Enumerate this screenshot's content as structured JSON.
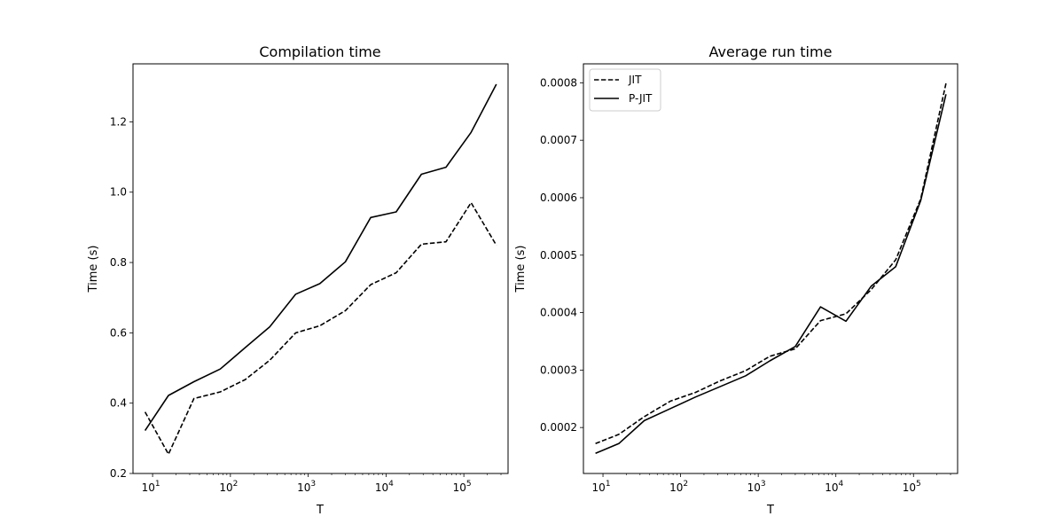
{
  "chart_data": [
    {
      "type": "line",
      "title": "Compilation time",
      "xlabel": "T",
      "ylabel": "Time (s)",
      "xscale": "log",
      "xlim": [
        5.6,
        370000
      ],
      "ylim": [
        0.2,
        1.365
      ],
      "xticks": [
        {
          "value": 10,
          "base": "10",
          "exp": "1"
        },
        {
          "value": 100,
          "base": "10",
          "exp": "2"
        },
        {
          "value": 1000,
          "base": "10",
          "exp": "3"
        },
        {
          "value": 10000,
          "base": "10",
          "exp": "4"
        },
        {
          "value": 100000,
          "base": "10",
          "exp": "5"
        }
      ],
      "yticks": [
        {
          "value": 0.2,
          "label": "0.2"
        },
        {
          "value": 0.4,
          "label": "0.4"
        },
        {
          "value": 0.6,
          "label": "0.6"
        },
        {
          "value": 0.8,
          "label": "0.8"
        },
        {
          "value": 1.0,
          "label": "1.0"
        },
        {
          "value": 1.2,
          "label": "1.2"
        }
      ],
      "x": [
        8,
        16,
        34,
        74,
        155,
        320,
        690,
        1410,
        3000,
        6350,
        13500,
        28500,
        59000,
        124000,
        262000
      ],
      "series": [
        {
          "values": [
            0.375,
            0.255,
            0.413,
            0.432,
            0.467,
            0.522,
            0.6,
            0.62,
            0.663,
            0.737,
            0.771,
            0.852,
            0.859,
            0.97,
            0.849
          ],
          "style": "dashed"
        },
        {
          "values": [
            0.322,
            0.422,
            0.461,
            0.497,
            0.558,
            0.617,
            0.71,
            0.74,
            0.802,
            0.928,
            0.944,
            1.051,
            1.071,
            1.17,
            1.307
          ],
          "style": "solid"
        }
      ],
      "grid": false,
      "legend": "none"
    },
    {
      "type": "line",
      "title": "Average run time",
      "xlabel": "T",
      "ylabel": "Time (s)",
      "xscale": "log",
      "xlim": [
        5.6,
        370000
      ],
      "ylim": [
        0.00012,
        0.000833
      ],
      "xticks": [
        {
          "value": 10,
          "base": "10",
          "exp": "1"
        },
        {
          "value": 100,
          "base": "10",
          "exp": "2"
        },
        {
          "value": 1000,
          "base": "10",
          "exp": "3"
        },
        {
          "value": 10000,
          "base": "10",
          "exp": "4"
        },
        {
          "value": 100000,
          "base": "10",
          "exp": "5"
        }
      ],
      "yticks": [
        {
          "value": 0.0002,
          "label": "0.0002"
        },
        {
          "value": 0.0003,
          "label": "0.0003"
        },
        {
          "value": 0.0004,
          "label": "0.0004"
        },
        {
          "value": 0.0005,
          "label": "0.0005"
        },
        {
          "value": 0.0006,
          "label": "0.0006"
        },
        {
          "value": 0.0007,
          "label": "0.0007"
        },
        {
          "value": 0.0008,
          "label": "0.0008"
        }
      ],
      "x": [
        8,
        16,
        34,
        74,
        155,
        320,
        690,
        1410,
        3000,
        6350,
        13500,
        28500,
        59000,
        124000,
        262000
      ],
      "series": [
        {
          "name": "JIT",
          "values": [
            0.000172,
            0.000188,
            0.000219,
            0.000246,
            0.000261,
            0.000281,
            0.000299,
            0.000324,
            0.000337,
            0.000386,
            0.000398,
            0.00044,
            0.000492,
            0.000598,
            0.000799
          ],
          "style": "dashed"
        },
        {
          "name": "P-JIT",
          "values": [
            0.000155,
            0.000172,
            0.000212,
            0.000233,
            0.000253,
            0.000271,
            0.00029,
            0.000316,
            0.000341,
            0.00041,
            0.000385,
            0.000446,
            0.00048,
            0.000595,
            0.00078
          ],
          "style": "solid"
        }
      ],
      "grid": false,
      "legend": "top-left"
    }
  ]
}
